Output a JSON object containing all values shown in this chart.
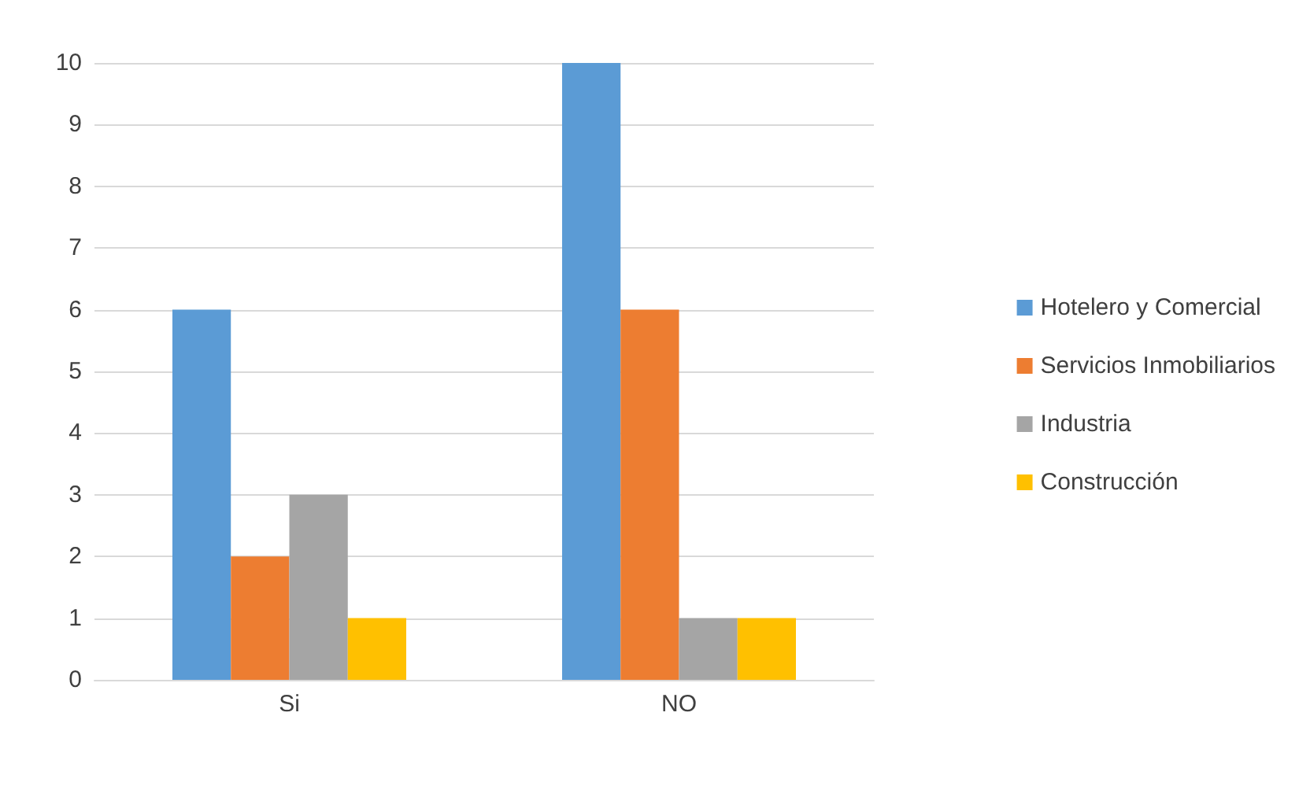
{
  "chart_data": {
    "type": "bar",
    "categories": [
      "Si",
      "NO"
    ],
    "series": [
      {
        "name": "Hotelero y Comercial",
        "color": "#5b9bd5",
        "values": [
          6,
          10
        ]
      },
      {
        "name": "Servicios Inmobiliarios",
        "color": "#ed7d31",
        "values": [
          2,
          6
        ]
      },
      {
        "name": "Industria",
        "color": "#a5a5a5",
        "values": [
          3,
          1
        ]
      },
      {
        "name": "Construcción",
        "color": "#ffc000",
        "values": [
          1,
          1
        ]
      }
    ],
    "ylim": [
      0,
      10
    ],
    "yticks": [
      0,
      1,
      2,
      3,
      4,
      5,
      6,
      7,
      8,
      9,
      10
    ],
    "grid": "y",
    "legend": "right"
  }
}
